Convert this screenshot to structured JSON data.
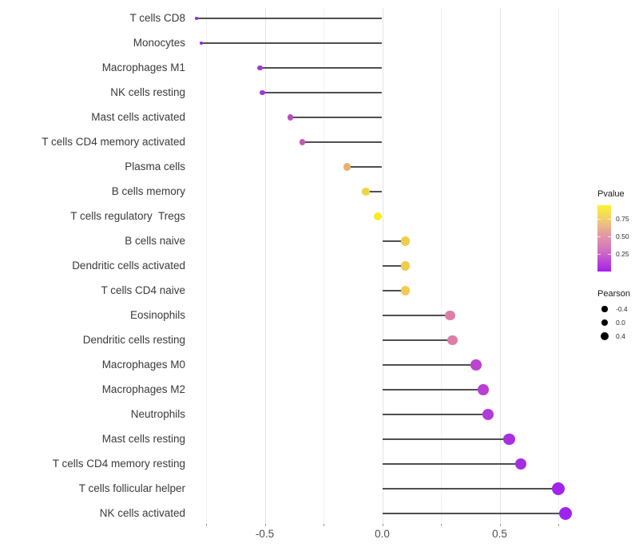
{
  "chart_data": {
    "type": "lollipop",
    "orientation": "horizontal",
    "title": "",
    "xlabel": "",
    "ylabel": "",
    "x_tick_labels": [
      "-0.5",
      "0.0",
      "0.5"
    ],
    "x_tick_values": [
      -0.5,
      0.0,
      0.5
    ],
    "minor_grid_values": [
      -0.75,
      -0.25,
      0.25,
      0.75
    ],
    "xlim": [
      -0.87,
      0.86
    ],
    "grid": "vertical-only",
    "stem_color": "#4f4f4f",
    "points": [
      {
        "label": "T cells CD8",
        "pearson": -0.79,
        "pvalue": 0.02,
        "color": "#9229dd"
      },
      {
        "label": "Monocytes",
        "pearson": -0.77,
        "pvalue": 0.03,
        "color": "#9529d8"
      },
      {
        "label": "Macrophages M1",
        "pearson": -0.52,
        "pvalue": 0.07,
        "color": "#a438d6"
      },
      {
        "label": "NK cells resting",
        "pearson": -0.51,
        "pvalue": 0.07,
        "color": "#a438d6"
      },
      {
        "label": "Mast cells activated",
        "pearson": -0.39,
        "pvalue": 0.15,
        "color": "#ba4bc2"
      },
      {
        "label": "T cells CD4 memory activated",
        "pearson": -0.34,
        "pvalue": 0.2,
        "color": "#c45bb6"
      },
      {
        "label": "Plasma cells",
        "pearson": -0.15,
        "pvalue": 0.6,
        "color": "#e9b16c"
      },
      {
        "label": "B cells memory",
        "pearson": -0.07,
        "pvalue": 0.76,
        "color": "#efd442"
      },
      {
        "label": "T cells regulatory  Tregs",
        "pearson": -0.02,
        "pvalue": 0.9,
        "color": "#f6ee1e"
      },
      {
        "label": "B cells naive",
        "pearson": 0.1,
        "pvalue": 0.72,
        "color": "#f0cc4b"
      },
      {
        "label": "Dendritic cells activated",
        "pearson": 0.1,
        "pvalue": 0.72,
        "color": "#f0cc4b"
      },
      {
        "label": "T cells CD4 naive",
        "pearson": 0.1,
        "pvalue": 0.72,
        "color": "#f0cc4b"
      },
      {
        "label": "Eosinophils",
        "pearson": 0.29,
        "pvalue": 0.42,
        "color": "#dc7fa8"
      },
      {
        "label": "Dendritic cells resting",
        "pearson": 0.3,
        "pvalue": 0.42,
        "color": "#dc7fa8"
      },
      {
        "label": "Macrophages M0",
        "pearson": 0.4,
        "pvalue": 0.13,
        "color": "#bc44cf"
      },
      {
        "label": "Macrophages M2",
        "pearson": 0.43,
        "pvalue": 0.11,
        "color": "#b83ed4"
      },
      {
        "label": "Neutrophils",
        "pearson": 0.45,
        "pvalue": 0.09,
        "color": "#b23ad8"
      },
      {
        "label": "Mast cells resting",
        "pearson": 0.54,
        "pvalue": 0.05,
        "color": "#a92fe0"
      },
      {
        "label": "T cells CD4 memory resting",
        "pearson": 0.59,
        "pvalue": 0.05,
        "color": "#a72de2"
      },
      {
        "label": "T cells follicular helper",
        "pearson": 0.75,
        "pvalue": 0.01,
        "color": "#a124ed"
      },
      {
        "label": "NK cells activated",
        "pearson": 0.78,
        "pvalue": 0.01,
        "color": "#a022ef"
      }
    ],
    "legend_pvalue": {
      "title": "Pvalue",
      "range": [
        0,
        0.94
      ],
      "tick_labels": [
        "0.75",
        "0.50",
        "0.25"
      ],
      "tick_values": [
        0.75,
        0.5,
        0.25
      ],
      "gradient_stops_top_to_bottom": [
        "#fcf22c",
        "#f4da5b",
        "#efbe80",
        "#e49ba0",
        "#dc86b2",
        "#ce68c6",
        "#ba44d9",
        "#a521ec"
      ],
      "low_color": "#a020f0",
      "high_color": "#fcf22c"
    },
    "legend_pearson": {
      "title": "Pearson",
      "entries": [
        {
          "label": "-0.4",
          "value": -0.4
        },
        {
          "label": "0.0",
          "value": 0.0
        },
        {
          "label": "0.4",
          "value": 0.4
        }
      ],
      "dot_color": "#000000"
    }
  }
}
